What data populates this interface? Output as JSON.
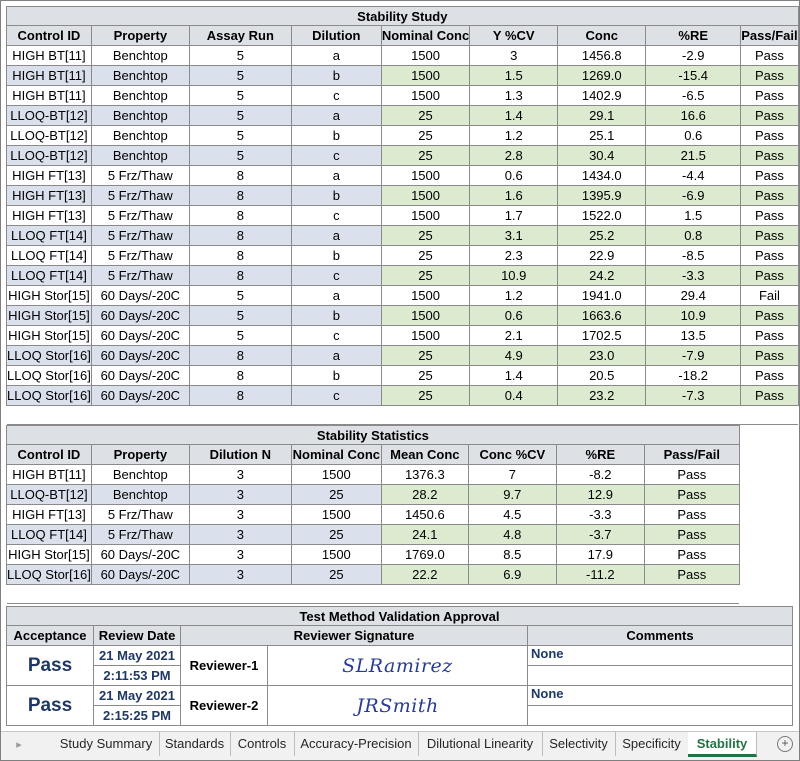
{
  "stability_study": {
    "title": "Stability Study",
    "headers": [
      "Control ID",
      "Property",
      "Assay Run",
      "Dilution",
      "Nominal Conc",
      "Y %CV",
      "Conc",
      "%RE",
      "Pass/Fail"
    ],
    "rows": [
      [
        "HIGH BT[11]",
        "Benchtop",
        "5",
        "a",
        "1500",
        "3",
        "1456.8",
        "-2.9",
        "Pass"
      ],
      [
        "HIGH BT[11]",
        "Benchtop",
        "5",
        "b",
        "1500",
        "1.5",
        "1269.0",
        "-15.4",
        "Pass"
      ],
      [
        "HIGH BT[11]",
        "Benchtop",
        "5",
        "c",
        "1500",
        "1.3",
        "1402.9",
        "-6.5",
        "Pass"
      ],
      [
        "LLOQ-BT[12]",
        "Benchtop",
        "5",
        "a",
        "25",
        "1.4",
        "29.1",
        "16.6",
        "Pass"
      ],
      [
        "LLOQ-BT[12]",
        "Benchtop",
        "5",
        "b",
        "25",
        "1.2",
        "25.1",
        "0.6",
        "Pass"
      ],
      [
        "LLOQ-BT[12]",
        "Benchtop",
        "5",
        "c",
        "25",
        "2.8",
        "30.4",
        "21.5",
        "Pass"
      ],
      [
        "HIGH FT[13]",
        "5 Frz/Thaw",
        "8",
        "a",
        "1500",
        "0.6",
        "1434.0",
        "-4.4",
        "Pass"
      ],
      [
        "HIGH FT[13]",
        "5 Frz/Thaw",
        "8",
        "b",
        "1500",
        "1.6",
        "1395.9",
        "-6.9",
        "Pass"
      ],
      [
        "HIGH FT[13]",
        "5 Frz/Thaw",
        "8",
        "c",
        "1500",
        "1.7",
        "1522.0",
        "1.5",
        "Pass"
      ],
      [
        "LLOQ FT[14]",
        "5 Frz/Thaw",
        "8",
        "a",
        "25",
        "3.1",
        "25.2",
        "0.8",
        "Pass"
      ],
      [
        "LLOQ FT[14]",
        "5 Frz/Thaw",
        "8",
        "b",
        "25",
        "2.3",
        "22.9",
        "-8.5",
        "Pass"
      ],
      [
        "LLOQ FT[14]",
        "5 Frz/Thaw",
        "8",
        "c",
        "25",
        "10.9",
        "24.2",
        "-3.3",
        "Pass"
      ],
      [
        "HIGH Stor[15]",
        "60 Days/-20C",
        "5",
        "a",
        "1500",
        "1.2",
        "1941.0",
        "29.4",
        "Fail"
      ],
      [
        "HIGH Stor[15]",
        "60 Days/-20C",
        "5",
        "b",
        "1500",
        "0.6",
        "1663.6",
        "10.9",
        "Pass"
      ],
      [
        "HIGH Stor[15]",
        "60 Days/-20C",
        "5",
        "c",
        "1500",
        "2.1",
        "1702.5",
        "13.5",
        "Pass"
      ],
      [
        "LLOQ Stor[16]",
        "60 Days/-20C",
        "8",
        "a",
        "25",
        "4.9",
        "23.0",
        "-7.9",
        "Pass"
      ],
      [
        "LLOQ Stor[16]",
        "60 Days/-20C",
        "8",
        "b",
        "25",
        "1.4",
        "20.5",
        "-18.2",
        "Pass"
      ],
      [
        "LLOQ Stor[16]",
        "60 Days/-20C",
        "8",
        "c",
        "25",
        "0.4",
        "23.2",
        "-7.3",
        "Pass"
      ]
    ]
  },
  "stability_statistics": {
    "title": "Stability Statistics",
    "headers": [
      "Control ID",
      "Property",
      "Dilution N",
      "Nominal Conc",
      "Mean Conc",
      "Conc %CV",
      "%RE",
      "Pass/Fail"
    ],
    "rows": [
      [
        "HIGH BT[11]",
        "Benchtop",
        "3",
        "1500",
        "1376.3",
        "7",
        "-8.2",
        "Pass"
      ],
      [
        "LLOQ-BT[12]",
        "Benchtop",
        "3",
        "25",
        "28.2",
        "9.7",
        "12.9",
        "Pass"
      ],
      [
        "HIGH FT[13]",
        "5 Frz/Thaw",
        "3",
        "1500",
        "1450.6",
        "4.5",
        "-3.3",
        "Pass"
      ],
      [
        "LLOQ FT[14]",
        "5 Frz/Thaw",
        "3",
        "25",
        "24.1",
        "4.8",
        "-3.7",
        "Pass"
      ],
      [
        "HIGH Stor[15]",
        "60 Days/-20C",
        "3",
        "1500",
        "1769.0",
        "8.5",
        "17.9",
        "Pass"
      ],
      [
        "LLOQ Stor[16]",
        "60 Days/-20C",
        "3",
        "25",
        "22.2",
        "6.9",
        "-11.2",
        "Pass"
      ]
    ]
  },
  "approval": {
    "title": "Test Method Validation Approval",
    "headers": [
      "Acceptance",
      "Review Date",
      "Reviewer Signature",
      "Comments"
    ],
    "rows": [
      {
        "acceptance": "Pass",
        "date": "21 May 2021",
        "time": "2:11:53 PM",
        "reviewer": "Reviewer-1",
        "signature": "SLRamirez",
        "comment": "None"
      },
      {
        "acceptance": "Pass",
        "date": "21 May 2021",
        "time": "2:15:25 PM",
        "reviewer": "Reviewer-2",
        "signature": "JRSmith",
        "comment": "None"
      }
    ]
  },
  "sheet_tabs": [
    "Study Summary",
    "Standards",
    "Controls",
    "Accuracy-Precision",
    "Dilutional Linearity",
    "Selectivity",
    "Specificity",
    "Stability"
  ],
  "active_tab": "Stability",
  "colors": {
    "header_bg": "#dde1e6",
    "blue_band": "#dbe1ec",
    "green_band": "#dcebd0",
    "accent": "#217346",
    "signature_ink": "#2a3c8f"
  },
  "icons": {
    "scroll_left": "triangle-right-icon",
    "add_sheet": "plus-circle-icon"
  }
}
